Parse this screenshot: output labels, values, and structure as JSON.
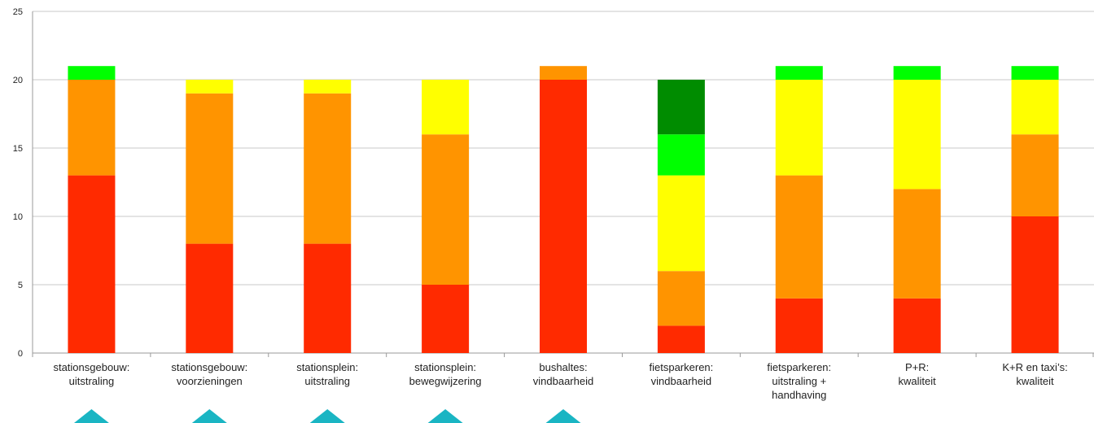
{
  "chart_data": {
    "type": "bar",
    "stacked": true,
    "categories": [
      [
        "stationsgebouw:",
        "uitstraling"
      ],
      [
        "stationsgebouw:",
        "voorzieningen"
      ],
      [
        "stationsplein:",
        "uitstraling"
      ],
      [
        "stationsplein:",
        "bewegwijzering"
      ],
      [
        "bushaltes:",
        "vindbaarheid"
      ],
      [
        "fietsparkeren:",
        "vindbaarheid"
      ],
      [
        "fietsparkeren:",
        "uitstraling +",
        "handhaving"
      ],
      [
        "P+R:",
        "kwaliteit"
      ],
      [
        "K+R en taxi’s:",
        "kwaliteit"
      ]
    ],
    "series": [
      {
        "color": "#ff2a00",
        "values": [
          13,
          8,
          8,
          5,
          20,
          2,
          4,
          4,
          10
        ]
      },
      {
        "color": "#ff9400",
        "values": [
          7,
          11,
          11,
          11,
          1,
          4,
          9,
          8,
          6
        ]
      },
      {
        "color": "#ffff00",
        "values": [
          0,
          1,
          1,
          4,
          0,
          7,
          7,
          8,
          4
        ]
      },
      {
        "color": "#00ff00",
        "values": [
          1,
          0,
          0,
          0,
          0,
          3,
          1,
          1,
          1
        ]
      },
      {
        "color": "#008c00",
        "values": [
          0,
          0,
          0,
          0,
          0,
          4,
          0,
          0,
          0
        ]
      }
    ],
    "ylim": [
      0,
      25
    ],
    "yticks": [
      0,
      5,
      10,
      15,
      20,
      25
    ],
    "grid": true,
    "legend": "none",
    "markers": {
      "shape": "triangle",
      "color": "#1ab5c3",
      "categories_marked": [
        0,
        1,
        2,
        3,
        4
      ]
    }
  }
}
